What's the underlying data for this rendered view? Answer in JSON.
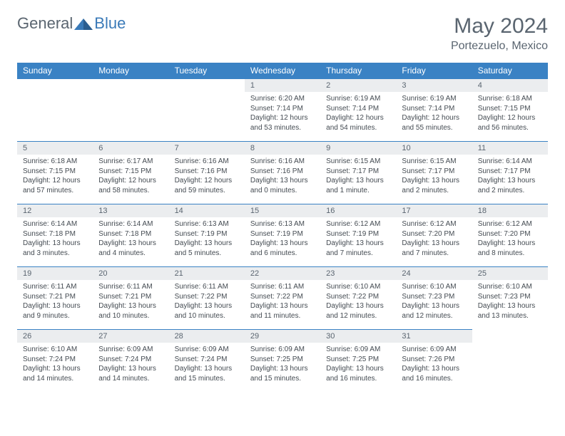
{
  "logo": {
    "general": "General",
    "blue": "Blue"
  },
  "title": "May 2024",
  "location": "Portezuelo, Mexico",
  "colors": {
    "header_bg": "#3a82c4",
    "header_text": "#ffffff",
    "daynum_bg": "#ebedef",
    "text_color": "#5a6570",
    "border": "#3a82c4"
  },
  "weekdays": [
    "Sunday",
    "Monday",
    "Tuesday",
    "Wednesday",
    "Thursday",
    "Friday",
    "Saturday"
  ],
  "blanks_before": 3,
  "days": [
    {
      "n": "1",
      "sr": "6:20 AM",
      "ss": "7:14 PM",
      "dl": "12 hours and 53 minutes."
    },
    {
      "n": "2",
      "sr": "6:19 AM",
      "ss": "7:14 PM",
      "dl": "12 hours and 54 minutes."
    },
    {
      "n": "3",
      "sr": "6:19 AM",
      "ss": "7:14 PM",
      "dl": "12 hours and 55 minutes."
    },
    {
      "n": "4",
      "sr": "6:18 AM",
      "ss": "7:15 PM",
      "dl": "12 hours and 56 minutes."
    },
    {
      "n": "5",
      "sr": "6:18 AM",
      "ss": "7:15 PM",
      "dl": "12 hours and 57 minutes."
    },
    {
      "n": "6",
      "sr": "6:17 AM",
      "ss": "7:15 PM",
      "dl": "12 hours and 58 minutes."
    },
    {
      "n": "7",
      "sr": "6:16 AM",
      "ss": "7:16 PM",
      "dl": "12 hours and 59 minutes."
    },
    {
      "n": "8",
      "sr": "6:16 AM",
      "ss": "7:16 PM",
      "dl": "13 hours and 0 minutes."
    },
    {
      "n": "9",
      "sr": "6:15 AM",
      "ss": "7:17 PM",
      "dl": "13 hours and 1 minute."
    },
    {
      "n": "10",
      "sr": "6:15 AM",
      "ss": "7:17 PM",
      "dl": "13 hours and 2 minutes."
    },
    {
      "n": "11",
      "sr": "6:14 AM",
      "ss": "7:17 PM",
      "dl": "13 hours and 2 minutes."
    },
    {
      "n": "12",
      "sr": "6:14 AM",
      "ss": "7:18 PM",
      "dl": "13 hours and 3 minutes."
    },
    {
      "n": "13",
      "sr": "6:14 AM",
      "ss": "7:18 PM",
      "dl": "13 hours and 4 minutes."
    },
    {
      "n": "14",
      "sr": "6:13 AM",
      "ss": "7:19 PM",
      "dl": "13 hours and 5 minutes."
    },
    {
      "n": "15",
      "sr": "6:13 AM",
      "ss": "7:19 PM",
      "dl": "13 hours and 6 minutes."
    },
    {
      "n": "16",
      "sr": "6:12 AM",
      "ss": "7:19 PM",
      "dl": "13 hours and 7 minutes."
    },
    {
      "n": "17",
      "sr": "6:12 AM",
      "ss": "7:20 PM",
      "dl": "13 hours and 7 minutes."
    },
    {
      "n": "18",
      "sr": "6:12 AM",
      "ss": "7:20 PM",
      "dl": "13 hours and 8 minutes."
    },
    {
      "n": "19",
      "sr": "6:11 AM",
      "ss": "7:21 PM",
      "dl": "13 hours and 9 minutes."
    },
    {
      "n": "20",
      "sr": "6:11 AM",
      "ss": "7:21 PM",
      "dl": "13 hours and 10 minutes."
    },
    {
      "n": "21",
      "sr": "6:11 AM",
      "ss": "7:22 PM",
      "dl": "13 hours and 10 minutes."
    },
    {
      "n": "22",
      "sr": "6:11 AM",
      "ss": "7:22 PM",
      "dl": "13 hours and 11 minutes."
    },
    {
      "n": "23",
      "sr": "6:10 AM",
      "ss": "7:22 PM",
      "dl": "13 hours and 12 minutes."
    },
    {
      "n": "24",
      "sr": "6:10 AM",
      "ss": "7:23 PM",
      "dl": "13 hours and 12 minutes."
    },
    {
      "n": "25",
      "sr": "6:10 AM",
      "ss": "7:23 PM",
      "dl": "13 hours and 13 minutes."
    },
    {
      "n": "26",
      "sr": "6:10 AM",
      "ss": "7:24 PM",
      "dl": "13 hours and 14 minutes."
    },
    {
      "n": "27",
      "sr": "6:09 AM",
      "ss": "7:24 PM",
      "dl": "13 hours and 14 minutes."
    },
    {
      "n": "28",
      "sr": "6:09 AM",
      "ss": "7:24 PM",
      "dl": "13 hours and 15 minutes."
    },
    {
      "n": "29",
      "sr": "6:09 AM",
      "ss": "7:25 PM",
      "dl": "13 hours and 15 minutes."
    },
    {
      "n": "30",
      "sr": "6:09 AM",
      "ss": "7:25 PM",
      "dl": "13 hours and 16 minutes."
    },
    {
      "n": "31",
      "sr": "6:09 AM",
      "ss": "7:26 PM",
      "dl": "13 hours and 16 minutes."
    }
  ],
  "labels": {
    "sunrise": "Sunrise:",
    "sunset": "Sunset:",
    "daylight": "Daylight:"
  }
}
